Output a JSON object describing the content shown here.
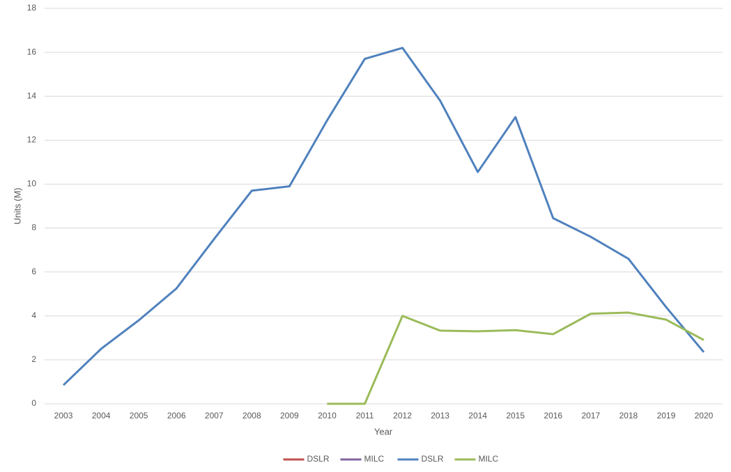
{
  "chart_data": {
    "type": "line",
    "x_label": "Year",
    "y_label": "Units (M)",
    "categories": [
      "2003",
      "2004",
      "2005",
      "2006",
      "2007",
      "2008",
      "2009",
      "2010",
      "2011",
      "2012",
      "2013",
      "2014",
      "2015",
      "2016",
      "2017",
      "2018",
      "2019",
      "2020"
    ],
    "series": [
      {
        "name": "DSLR",
        "color": "#c0504d",
        "values": [
          null,
          null,
          null,
          null,
          null,
          null,
          null,
          null,
          null,
          null,
          null,
          null,
          null,
          null,
          null,
          null,
          null,
          null
        ]
      },
      {
        "name": "MILC",
        "color": "#8064a2",
        "values": [
          null,
          null,
          null,
          null,
          null,
          null,
          null,
          null,
          null,
          null,
          null,
          null,
          null,
          null,
          null,
          null,
          null,
          null
        ]
      },
      {
        "name": "DSLR",
        "color": "#4f81bd",
        "values": [
          0.85,
          2.5,
          3.8,
          5.25,
          7.5,
          9.7,
          9.9,
          12.9,
          15.7,
          16.2,
          13.8,
          10.55,
          13.05,
          8.45,
          7.6,
          6.6,
          4.4,
          2.35
        ]
      },
      {
        "name": "MILC",
        "color": "#9bbb59",
        "values": [
          null,
          null,
          null,
          null,
          null,
          null,
          null,
          0,
          0,
          4.0,
          3.33,
          3.3,
          3.35,
          3.17,
          4.1,
          4.15,
          3.83,
          2.9
        ]
      }
    ],
    "ylim": [
      0,
      18
    ],
    "yticks": [
      0,
      2,
      4,
      6,
      8,
      10,
      12,
      14,
      16,
      18
    ],
    "grid": true,
    "legend": "bottom"
  }
}
